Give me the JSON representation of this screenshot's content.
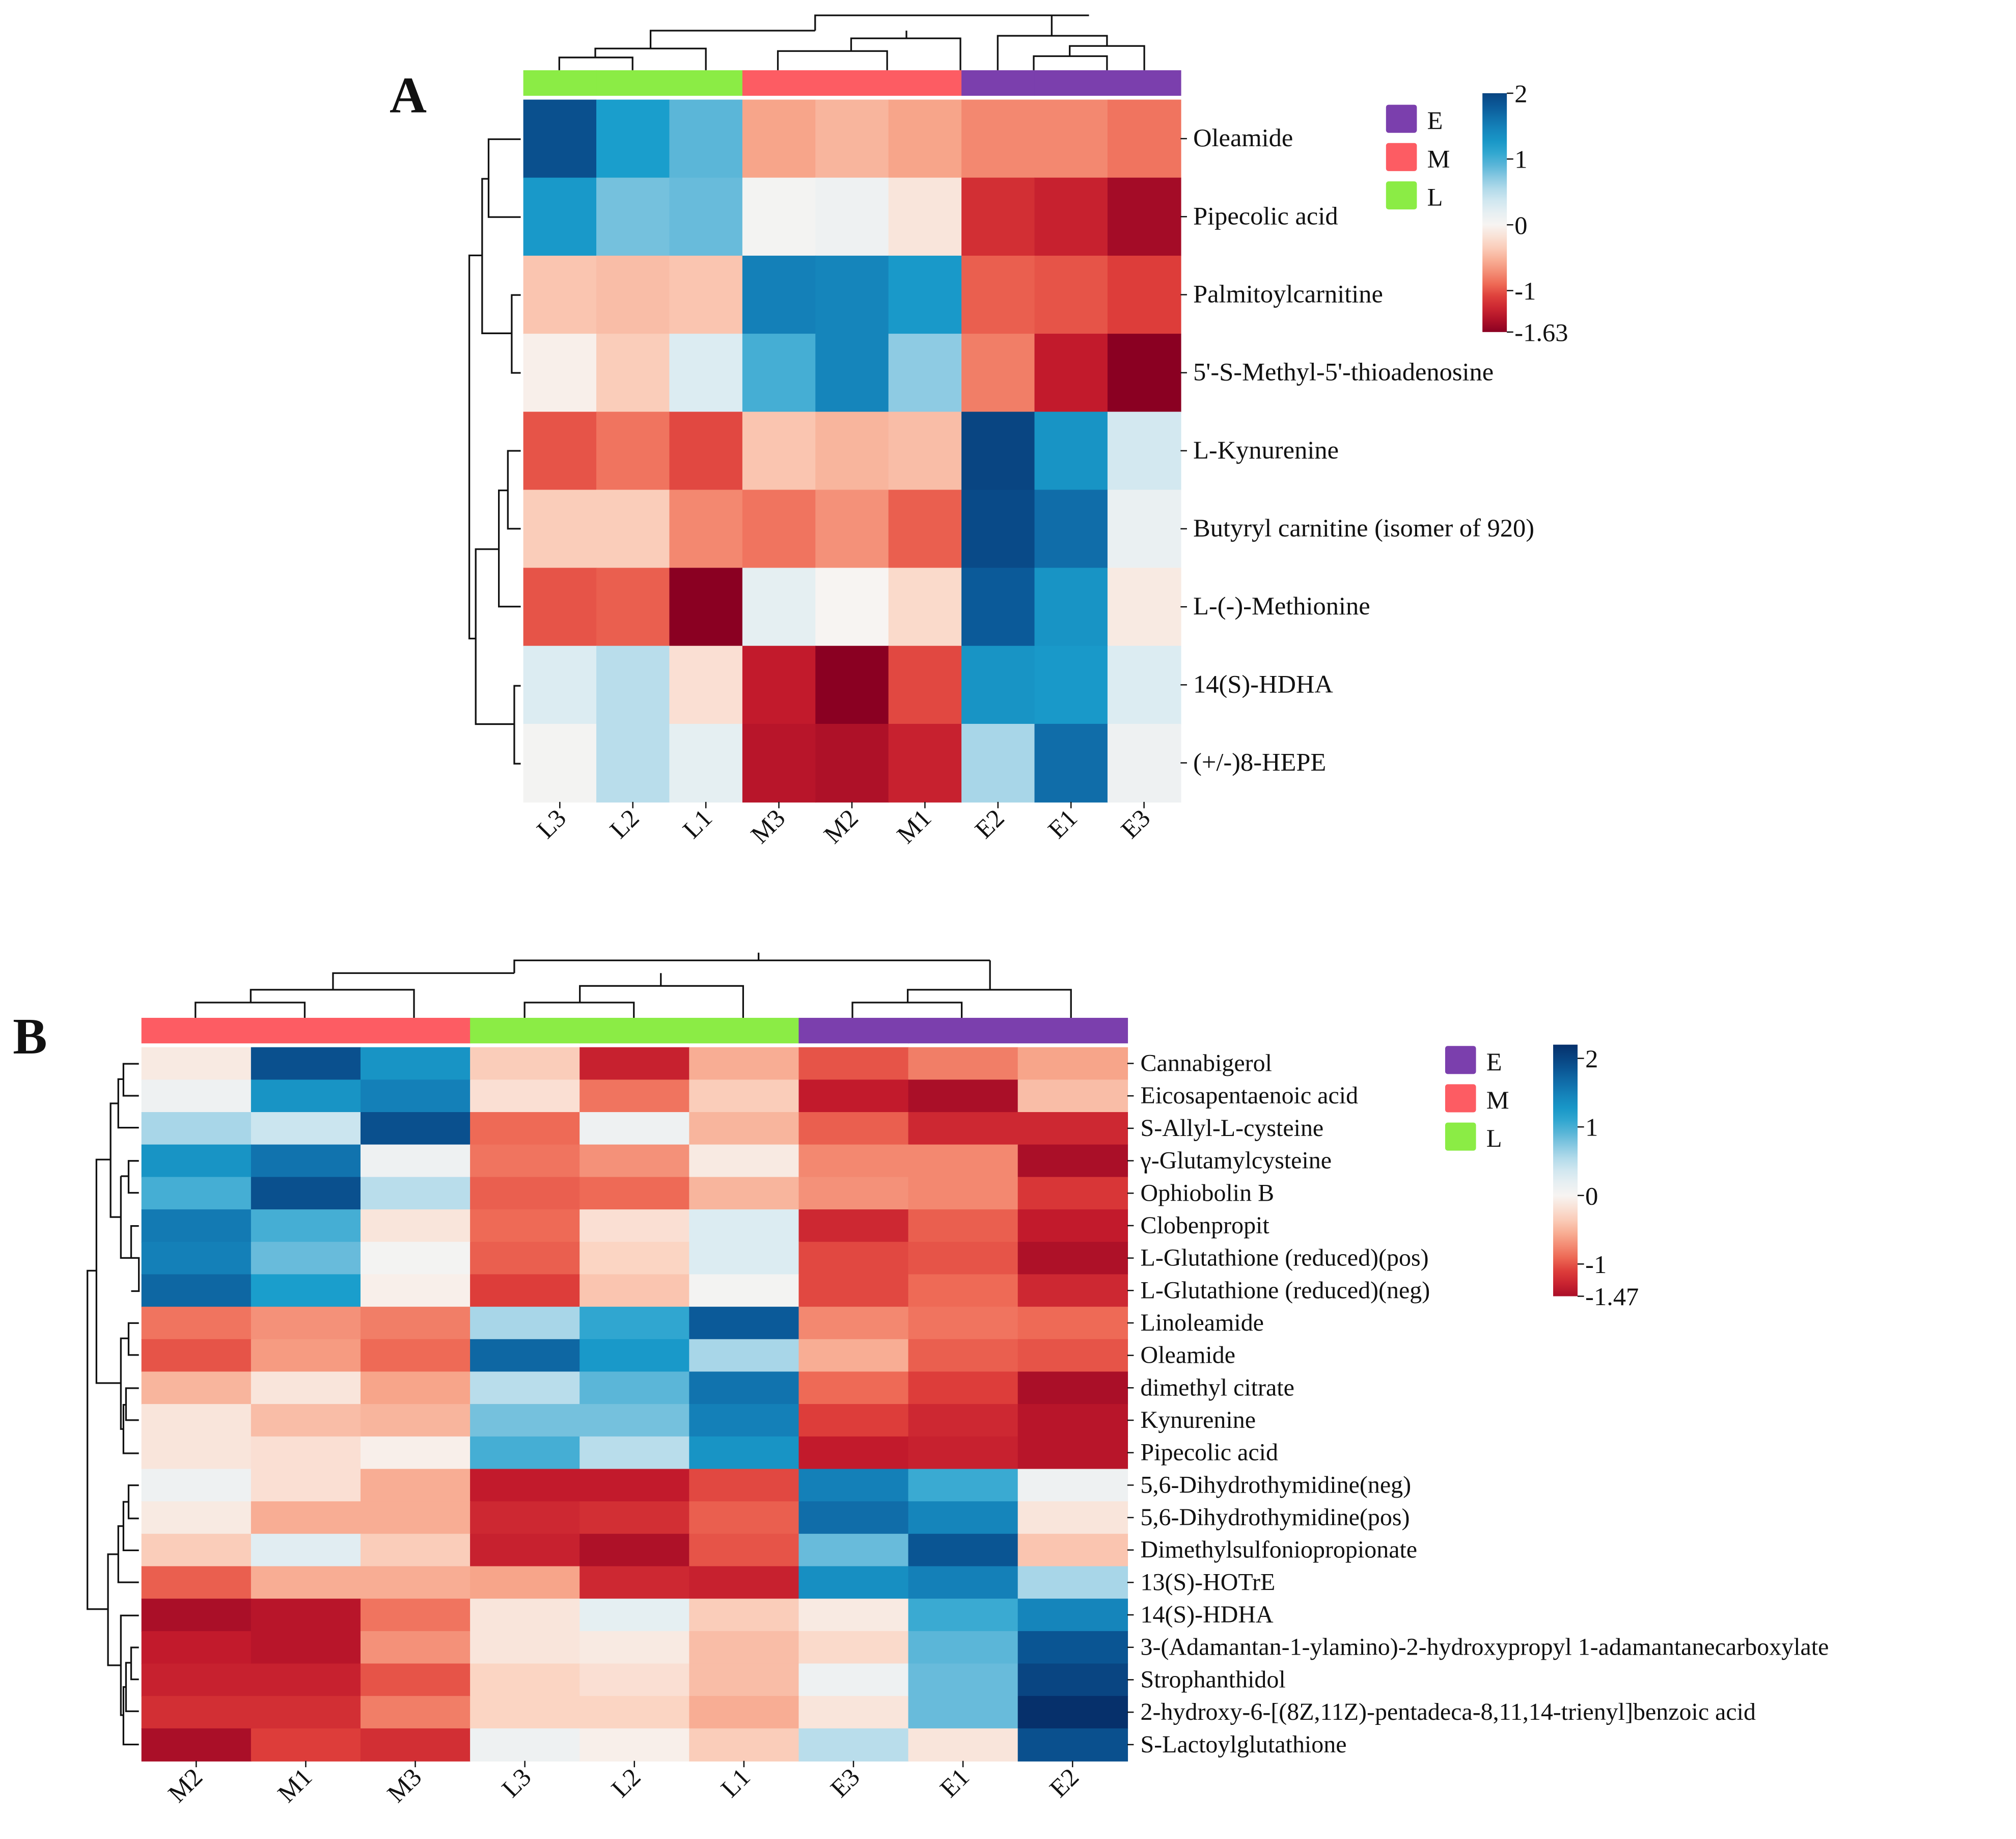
{
  "chart_data": [
    {
      "type": "heatmap",
      "panel_label": "A",
      "columns": [
        "L3",
        "L2",
        "L1",
        "M3",
        "M2",
        "M1",
        "E2",
        "E1",
        "E3"
      ],
      "column_groups": [
        "L",
        "L",
        "L",
        "M",
        "M",
        "M",
        "E",
        "E",
        "E"
      ],
      "rows": [
        "Oleamide",
        "Pipecolic acid",
        "Palmitoylcarnitine",
        "5'-S-Methyl-5'-thioadenosine",
        "L-Kynurenine",
        "Butyryl carnitine (isomer of 920)",
        "L-(-)-Methionine",
        "14(S)-HDHA",
        "(+/-)8-HEPE"
      ],
      "values": [
        [
          1.9,
          1.2,
          0.9,
          -0.6,
          -0.5,
          -0.6,
          -0.75,
          -0.75,
          -0.85
        ],
        [
          1.25,
          0.8,
          0.85,
          0.05,
          0.1,
          -0.15,
          -1.2,
          -1.3,
          -1.5
        ],
        [
          -0.4,
          -0.45,
          -0.4,
          1.5,
          1.45,
          1.25,
          -0.95,
          -1.0,
          -1.1
        ],
        [
          -0.05,
          -0.35,
          0.3,
          1.0,
          1.45,
          0.7,
          -0.8,
          -1.35,
          -1.63
        ],
        [
          -1.0,
          -0.85,
          -1.05,
          -0.4,
          -0.5,
          -0.45,
          2.0,
          1.3,
          0.35
        ],
        [
          -0.35,
          -0.35,
          -0.75,
          -0.85,
          -0.7,
          -0.95,
          1.95,
          1.65,
          0.15
        ],
        [
          -1.0,
          -0.95,
          -1.63,
          0.2,
          0.0,
          -0.25,
          1.8,
          1.3,
          -0.1
        ],
        [
          0.3,
          0.5,
          -0.2,
          -1.35,
          -1.63,
          -1.05,
          1.3,
          1.25,
          0.3
        ],
        [
          0.05,
          0.5,
          0.2,
          -1.4,
          -1.45,
          -1.3,
          0.6,
          1.65,
          0.1
        ]
      ],
      "colorbar": {
        "min": -1.63,
        "max": 2,
        "ticks": [
          2,
          1,
          0,
          -1
        ],
        "tick_labels": [
          "2",
          "1",
          "0",
          "-1",
          "-1.63"
        ]
      },
      "legend": [
        {
          "label": "E",
          "color": "#7b3fad"
        },
        {
          "label": "M",
          "color": "#fd5c63"
        },
        {
          "label": "L",
          "color": "#8bec45"
        }
      ]
    },
    {
      "type": "heatmap",
      "panel_label": "B",
      "columns": [
        "M2",
        "M1",
        "M3",
        "L3",
        "L2",
        "L1",
        "E3",
        "E1",
        "E2"
      ],
      "column_groups": [
        "M",
        "M",
        "M",
        "L",
        "L",
        "L",
        "E",
        "E",
        "E"
      ],
      "rows": [
        "Cannabigerol",
        "Eicosapentaenoic acid",
        "S-Allyl-L-cysteine",
        "γ-Glutamylcysteine",
        "Ophiobolin B",
        "Clobenpropit",
        "L-Glutathione (reduced)(pos)",
        "L-Glutathione (reduced)(neg)",
        "Linoleamide",
        "Oleamide",
        "dimethyl citrate",
        "Kynurenine",
        "Pipecolic acid",
        "5,6-Dihydrothymidine(neg)",
        "5,6-Dihydrothymidine(pos)",
        "Dimethylsulfoniopropionate",
        "13(S)-HOTrE",
        "14(S)-HDHA",
        "3-(Adamantan-1-ylamino)-2-hydroxypropyl 1-adamantanecarboxylate",
        "Strophanthidol",
        "2-hydroxy-6-[(8Z,11Z)-pentadeca-8,11,14-trienyl]benzoic acid",
        "S-Lactoylglutathione"
      ],
      "values": [
        [
          -0.1,
          1.9,
          1.3,
          -0.35,
          -1.3,
          -0.55,
          -1.0,
          -0.8,
          -0.6
        ],
        [
          0.1,
          1.3,
          1.5,
          -0.2,
          -0.85,
          -0.35,
          -1.35,
          -1.47,
          -0.45
        ],
        [
          0.6,
          0.4,
          1.9,
          -0.9,
          0.1,
          -0.5,
          -0.95,
          -1.25,
          -1.25
        ],
        [
          1.3,
          1.6,
          0.1,
          -0.85,
          -0.7,
          -0.1,
          -0.75,
          -0.75,
          -1.47
        ],
        [
          1.0,
          1.9,
          0.5,
          -0.95,
          -0.9,
          -0.5,
          -0.7,
          -0.75,
          -1.15
        ],
        [
          1.55,
          1.0,
          -0.15,
          -0.9,
          -0.2,
          0.3,
          -1.25,
          -0.95,
          -1.35
        ],
        [
          1.5,
          0.85,
          0.05,
          -0.95,
          -0.3,
          0.3,
          -1.05,
          -1.0,
          -1.45
        ],
        [
          1.7,
          1.2,
          -0.05,
          -1.1,
          -0.4,
          0.05,
          -1.05,
          -0.9,
          -1.25
        ],
        [
          -0.85,
          -0.7,
          -0.8,
          0.6,
          1.1,
          1.8,
          -0.75,
          -0.85,
          -0.9
        ],
        [
          -1.0,
          -0.65,
          -0.9,
          1.7,
          1.25,
          0.6,
          -0.55,
          -0.95,
          -1.0
        ],
        [
          -0.5,
          -0.15,
          -0.6,
          0.5,
          0.9,
          1.6,
          -0.9,
          -1.1,
          -1.47
        ],
        [
          -0.15,
          -0.45,
          -0.5,
          0.8,
          0.8,
          1.5,
          -1.1,
          -1.25,
          -1.4
        ],
        [
          -0.15,
          -0.2,
          -0.05,
          1.0,
          0.5,
          1.3,
          -1.35,
          -1.3,
          -1.4
        ],
        [
          0.1,
          -0.2,
          -0.55,
          -1.35,
          -1.35,
          -1.05,
          1.5,
          1.05,
          0.1
        ],
        [
          -0.1,
          -0.55,
          -0.55,
          -1.25,
          -1.2,
          -0.95,
          1.65,
          1.45,
          -0.15
        ],
        [
          -0.35,
          0.25,
          -0.35,
          -1.3,
          -1.45,
          -1.0,
          0.85,
          1.85,
          -0.4
        ],
        [
          -0.95,
          -0.55,
          -0.55,
          -0.6,
          -1.25,
          -1.3,
          1.35,
          1.5,
          0.6
        ],
        [
          -1.47,
          -1.4,
          -0.85,
          -0.15,
          0.2,
          -0.35,
          -0.1,
          1.05,
          1.45
        ],
        [
          -1.35,
          -1.4,
          -0.7,
          -0.15,
          -0.1,
          -0.45,
          -0.25,
          0.9,
          1.85
        ],
        [
          -1.3,
          -1.3,
          -1.0,
          -0.3,
          -0.2,
          -0.45,
          0.1,
          0.85,
          2.0
        ],
        [
          -1.2,
          -1.2,
          -0.8,
          -0.3,
          -0.3,
          -0.55,
          -0.15,
          0.85,
          2.2
        ],
        [
          -1.47,
          -1.1,
          -1.2,
          0.1,
          -0.05,
          -0.35,
          0.5,
          -0.15,
          1.9
        ]
      ],
      "colorbar": {
        "min": -1.47,
        "max": 2.2,
        "ticks": [
          2,
          1,
          0,
          -1
        ],
        "tick_labels": [
          "2",
          "1",
          "0",
          "-1",
          "-1.47"
        ]
      },
      "legend": [
        {
          "label": "E",
          "color": "#7b3fad"
        },
        {
          "label": "M",
          "color": "#fd5c63"
        },
        {
          "label": "L",
          "color": "#8bec45"
        }
      ]
    }
  ]
}
